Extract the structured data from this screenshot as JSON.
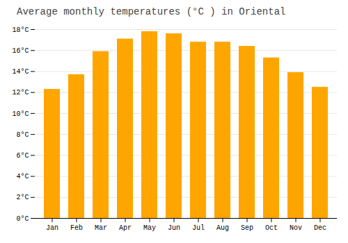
{
  "chart_data": {
    "type": "bar",
    "title": "Average monthly temperatures (°C ) in Oriental",
    "categories": [
      "Jan",
      "Feb",
      "Mar",
      "Apr",
      "May",
      "Jun",
      "Jul",
      "Aug",
      "Sep",
      "Oct",
      "Nov",
      "Dec"
    ],
    "values": [
      12.3,
      13.7,
      15.9,
      17.1,
      17.8,
      17.6,
      16.8,
      16.8,
      16.4,
      15.3,
      13.9,
      12.5
    ],
    "color": "#FFA500",
    "ylim": [
      0,
      18
    ],
    "yticks": [
      {
        "value": 0,
        "label": "0°C"
      },
      {
        "value": 2,
        "label": "2°C"
      },
      {
        "value": 4,
        "label": "4°C"
      },
      {
        "value": 6,
        "label": "6°C"
      },
      {
        "value": 8,
        "label": "8°C"
      },
      {
        "value": 10,
        "label": "10°C"
      },
      {
        "value": 12,
        "label": "12°C"
      },
      {
        "value": 14,
        "label": "14°C"
      },
      {
        "value": 16,
        "label": "16°C"
      },
      {
        "value": 18,
        "label": "18°C"
      }
    ],
    "grid": true
  }
}
